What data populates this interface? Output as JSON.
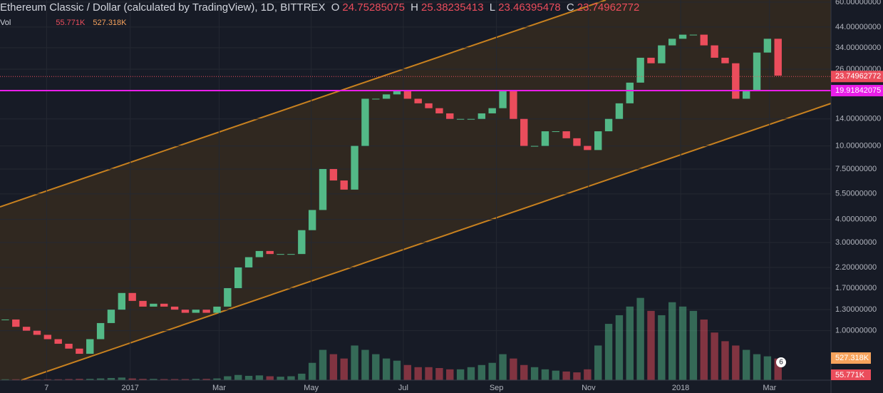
{
  "header": {
    "symbol": "Ethereum Classic / Dollar (calculated by TradingView), 1D, BITTREX",
    "open_label": "O",
    "open": 24.75285075,
    "high_label": "H",
    "high": 25.38235413,
    "low_label": "L",
    "low": 23.46395478,
    "close_label": "C",
    "close": 23.74962772,
    "volume_label": "Vol",
    "volume_value": "55.771K",
    "volume_ma": "527.318K"
  },
  "chart_data": {
    "type": "candlestick",
    "log_scale": true,
    "grid": true,
    "up_color": "#53b987",
    "down_color": "#eb4d5c",
    "xlim": [
      0,
      78.5
    ],
    "ylim": [
      0.54,
      61.6
    ],
    "xticks": [
      {
        "value": 4.4,
        "label": "7"
      },
      {
        "value": 12.3,
        "label": "2017"
      },
      {
        "value": 20.7,
        "label": "Mar"
      },
      {
        "value": 29.4,
        "label": "May"
      },
      {
        "value": 38.1,
        "label": "Jul"
      },
      {
        "value": 46.9,
        "label": "Sep"
      },
      {
        "value": 55.6,
        "label": "Nov"
      },
      {
        "value": 64.3,
        "label": "2018"
      },
      {
        "value": 72.7,
        "label": "Mar"
      }
    ],
    "yticks": [
      {
        "value": 60,
        "label": "60.00000000"
      },
      {
        "value": 44,
        "label": "44.00000000"
      },
      {
        "value": 34,
        "label": "34.00000000"
      },
      {
        "value": 26,
        "label": "26.00000000"
      },
      {
        "value": 14,
        "label": "14.00000000"
      },
      {
        "value": 10,
        "label": "10.00000000"
      },
      {
        "value": 7.5,
        "label": "7.50000000"
      },
      {
        "value": 5.5,
        "label": "5.50000000"
      },
      {
        "value": 4,
        "label": "4.00000000"
      },
      {
        "value": 3,
        "label": "3.00000000"
      },
      {
        "value": 2.2,
        "label": "2.20000000"
      },
      {
        "value": 1.7,
        "label": "1.70000000"
      },
      {
        "value": 1.3,
        "label": "1.30000000"
      },
      {
        "value": 1,
        "label": "1.00000000"
      }
    ],
    "values": [
      1.15,
      1.05,
      1.0,
      0.95,
      0.9,
      0.85,
      0.8,
      0.75,
      0.9,
      1.1,
      1.3,
      1.6,
      1.45,
      1.35,
      1.4,
      1.35,
      1.3,
      1.25,
      1.3,
      1.25,
      1.35,
      1.7,
      2.2,
      2.5,
      2.7,
      2.6,
      2.6,
      2.6,
      3.5,
      4.5,
      7.5,
      6.5,
      5.8,
      10,
      18,
      18,
      19,
      20,
      18,
      17,
      16,
      15,
      14,
      14,
      14,
      15,
      16,
      20,
      14,
      10,
      10,
      12,
      12,
      11,
      10,
      9.5,
      12,
      14,
      17,
      22,
      30,
      28,
      35,
      38,
      40,
      40,
      35,
      30,
      28,
      18,
      20,
      32,
      38,
      24
    ],
    "volume": [
      20,
      20,
      15,
      15,
      20,
      20,
      25,
      30,
      30,
      40,
      50,
      60,
      40,
      30,
      30,
      25,
      25,
      25,
      30,
      30,
      40,
      90,
      120,
      100,
      110,
      90,
      80,
      90,
      150,
      400,
      700,
      600,
      500,
      800,
      700,
      600,
      500,
      450,
      350,
      300,
      300,
      280,
      250,
      250,
      300,
      350,
      400,
      600,
      500,
      350,
      300,
      250,
      220,
      200,
      180,
      250,
      800,
      1300,
      1500,
      1700,
      1900,
      1600,
      1500,
      1800,
      1700,
      1600,
      1400,
      1100,
      900,
      800,
      700,
      600,
      550,
      500
    ],
    "vlim": [
      0,
      8780
    ],
    "last_price": 23.74962772,
    "level": 19.91842075,
    "volume_tag": "527.318K",
    "volume_last_tag": "55.771K",
    "badge": "6"
  }
}
